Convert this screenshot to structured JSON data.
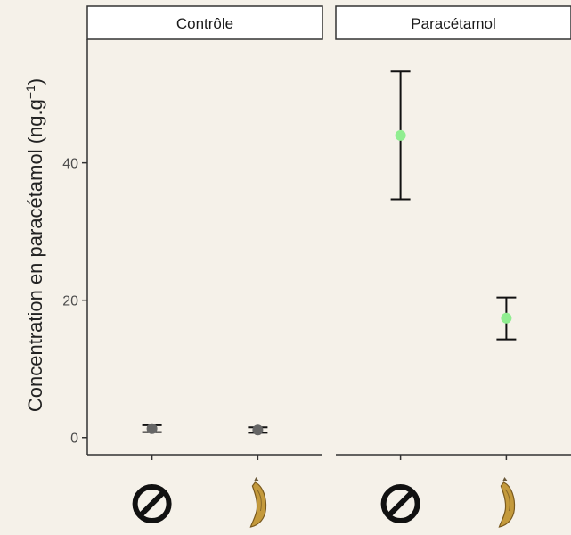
{
  "chart_data": {
    "type": "scatter",
    "ylabel": "Concentration en paracétamol (ng.g",
    "ylabel_sup": "−1",
    "ylabel_close": ")",
    "yticks": [
      0,
      20,
      40
    ],
    "ylim": [
      -2.5,
      58
    ],
    "x_icons": [
      "no-treatment-icon",
      "bean-pod-icon"
    ],
    "grid": false,
    "panels": [
      {
        "strip_label": "Contrôle",
        "point_color": "#666666",
        "points": [
          {
            "x": "no-treatment-icon",
            "y": 1.3,
            "ymin": 0.8,
            "ymax": 1.8
          },
          {
            "x": "bean-pod-icon",
            "y": 1.1,
            "ymin": 0.7,
            "ymax": 1.5
          }
        ]
      },
      {
        "strip_label": "Paracétamol",
        "point_color": "#90ee90",
        "points": [
          {
            "x": "no-treatment-icon",
            "y": 44.0,
            "ymin": 34.7,
            "ymax": 53.3
          },
          {
            "x": "bean-pod-icon",
            "y": 17.4,
            "ymin": 14.3,
            "ymax": 20.4
          }
        ]
      }
    ]
  }
}
